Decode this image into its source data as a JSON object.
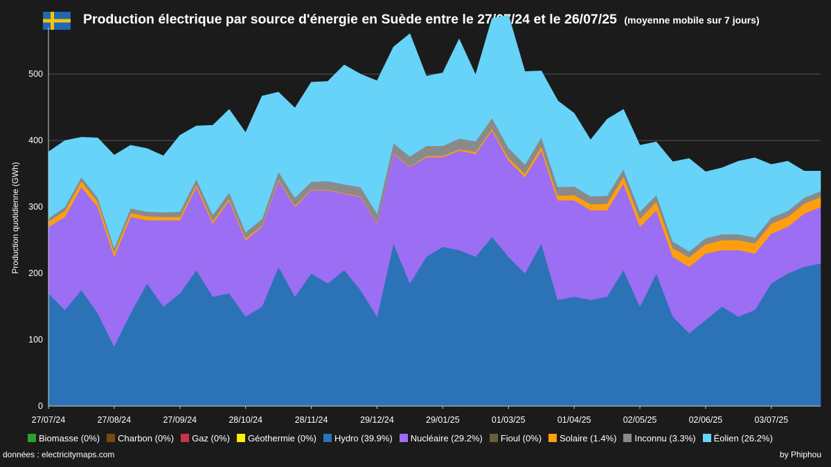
{
  "header": {
    "title": "Production électrique par source d'énergie en Suède entre le 27/07/24 et le 26/07/25",
    "subtitle": "(moyenne mobile sur 7 jours)"
  },
  "footer": {
    "source": "données : electricitymaps.com",
    "credit": "by Phiphou"
  },
  "chart_data": {
    "type": "area",
    "stacked": true,
    "ylabel": "Production quotidienne (GWh)",
    "ylim": [
      0,
      570
    ],
    "yticks": [
      0,
      100,
      200,
      300,
      400,
      500
    ],
    "grid": true,
    "legend_position": "bottom",
    "x_tick_labels": [
      "27/07/24",
      "27/08/24",
      "27/09/24",
      "28/10/24",
      "28/11/24",
      "29/12/24",
      "29/01/25",
      "01/03/25",
      "01/04/25",
      "02/05/25",
      "02/06/25",
      "03/07/25"
    ],
    "x": [
      "27/07/24",
      "03/08/24",
      "10/08/24",
      "17/08/24",
      "27/08/24",
      "03/09/24",
      "10/09/24",
      "17/09/24",
      "27/09/24",
      "04/10/24",
      "11/10/24",
      "18/10/24",
      "28/10/24",
      "04/11/24",
      "11/11/24",
      "18/11/24",
      "28/11/24",
      "05/12/24",
      "12/12/24",
      "19/12/24",
      "29/12/24",
      "05/01/25",
      "12/01/25",
      "19/01/25",
      "29/01/25",
      "05/02/25",
      "12/02/25",
      "19/02/25",
      "01/03/25",
      "08/03/25",
      "15/03/25",
      "22/03/25",
      "01/04/25",
      "08/04/25",
      "15/04/25",
      "22/04/25",
      "02/05/25",
      "09/05/25",
      "16/05/25",
      "23/05/25",
      "02/06/25",
      "09/06/25",
      "16/06/25",
      "23/06/25",
      "03/07/25",
      "10/07/25",
      "17/07/25",
      "26/07/25"
    ],
    "series": [
      {
        "name": "Biomasse (0%)",
        "color": "#2ca02c",
        "values": [
          0,
          0,
          0,
          0,
          0,
          0,
          0,
          0,
          0,
          0,
          0,
          0,
          0,
          0,
          0,
          0,
          0,
          0,
          0,
          0,
          0,
          0,
          0,
          0,
          0,
          0,
          0,
          0,
          0,
          0,
          0,
          0,
          0,
          0,
          0,
          0,
          0,
          0,
          0,
          0,
          0,
          0,
          0,
          0,
          0,
          0,
          0,
          0
        ]
      },
      {
        "name": "Charbon (0%)",
        "color": "#7a4a10",
        "values": [
          0,
          0,
          0,
          0,
          0,
          0,
          0,
          0,
          0,
          0,
          0,
          0,
          0,
          0,
          0,
          0,
          0,
          0,
          0,
          0,
          0,
          0,
          0,
          0,
          0,
          0,
          0,
          0,
          0,
          0,
          0,
          0,
          0,
          0,
          0,
          0,
          0,
          0,
          0,
          0,
          0,
          0,
          0,
          0,
          0,
          0,
          0,
          0
        ]
      },
      {
        "name": "Gaz (0%)",
        "color": "#c8334e",
        "values": [
          0,
          0,
          0,
          0,
          0,
          0,
          0,
          0,
          0,
          0,
          0,
          0,
          0,
          0,
          0,
          0,
          0,
          0,
          0,
          0,
          0,
          0,
          0,
          0,
          0,
          0,
          0,
          0,
          0,
          0,
          0,
          0,
          0,
          0,
          0,
          0,
          0,
          0,
          0,
          0,
          0,
          0,
          0,
          0,
          0,
          0,
          0,
          0
        ]
      },
      {
        "name": "Géothermie (0%)",
        "color": "#ffee00",
        "values": [
          0,
          0,
          0,
          0,
          0,
          0,
          0,
          0,
          0,
          0,
          0,
          0,
          0,
          0,
          0,
          0,
          0,
          0,
          0,
          0,
          0,
          0,
          0,
          0,
          0,
          0,
          0,
          0,
          0,
          0,
          0,
          0,
          0,
          0,
          0,
          0,
          0,
          0,
          0,
          0,
          0,
          0,
          0,
          0,
          0,
          0,
          0,
          0
        ]
      },
      {
        "name": "Hydro (39.9%)",
        "color": "#2b73b6",
        "values": [
          170,
          145,
          175,
          140,
          90,
          140,
          185,
          150,
          170,
          205,
          165,
          170,
          135,
          150,
          210,
          165,
          200,
          185,
          205,
          175,
          135,
          245,
          185,
          225,
          240,
          235,
          225,
          255,
          225,
          200,
          245,
          160,
          165,
          160,
          165,
          205,
          150,
          200,
          135,
          110,
          130,
          150,
          135,
          145,
          185,
          200,
          210,
          215
        ]
      },
      {
        "name": "Nucléaire (29.2%)",
        "color": "#9b6ef3",
        "values": [
          100,
          140,
          155,
          160,
          135,
          145,
          95,
          130,
          110,
          125,
          110,
          140,
          115,
          120,
          130,
          135,
          125,
          140,
          115,
          140,
          140,
          135,
          175,
          150,
          135,
          150,
          155,
          160,
          145,
          145,
          140,
          150,
          145,
          135,
          130,
          130,
          120,
          95,
          90,
          100,
          100,
          85,
          100,
          85,
          75,
          70,
          80,
          85
        ]
      },
      {
        "name": "Fioul (0%)",
        "color": "#6b5e3a",
        "values": [
          0,
          0,
          0,
          0,
          0,
          0,
          0,
          0,
          0,
          0,
          0,
          0,
          0,
          0,
          0,
          0,
          0,
          0,
          0,
          0,
          0,
          0,
          0,
          0,
          0,
          0,
          0,
          0,
          0,
          0,
          0,
          0,
          0,
          0,
          0,
          0,
          0,
          0,
          0,
          0,
          0,
          0,
          0,
          0,
          0,
          0,
          0,
          0
        ]
      },
      {
        "name": "Solaire (1.4%)",
        "color": "#ff9f0f",
        "values": [
          8,
          9,
          9,
          8,
          7,
          6,
          6,
          5,
          5,
          4,
          4,
          3,
          3,
          2,
          2,
          2,
          1,
          1,
          1,
          1,
          1,
          1,
          1,
          2,
          2,
          2,
          3,
          3,
          4,
          5,
          6,
          7,
          8,
          9,
          10,
          11,
          12,
          13,
          13,
          14,
          14,
          15,
          15,
          15,
          15,
          15,
          15,
          15
        ]
      },
      {
        "name": "Inconnu (3.3%)",
        "color": "#8a8a8a",
        "values": [
          5,
          6,
          6,
          6,
          6,
          7,
          7,
          7,
          8,
          8,
          9,
          9,
          9,
          10,
          11,
          12,
          12,
          13,
          13,
          14,
          14,
          15,
          15,
          15,
          15,
          16,
          16,
          16,
          15,
          14,
          14,
          13,
          13,
          12,
          12,
          11,
          11,
          10,
          10,
          9,
          9,
          9,
          9,
          9,
          9,
          9,
          9,
          9
        ]
      },
      {
        "name": "Éolien (26.2%)",
        "color": "#67d3f8",
        "values": [
          100,
          100,
          60,
          90,
          140,
          95,
          95,
          85,
          115,
          80,
          135,
          125,
          150,
          185,
          120,
          135,
          150,
          150,
          180,
          170,
          200,
          145,
          185,
          105,
          110,
          150,
          100,
          150,
          200,
          140,
          100,
          130,
          110,
          85,
          115,
          90,
          100,
          80,
          120,
          140,
          100,
          100,
          110,
          120,
          80,
          75,
          40,
          30
        ]
      }
    ]
  },
  "colors": {
    "background": "#1b1b1b",
    "grid": "#555555",
    "flag_blue": "#1f69b3",
    "flag_yellow": "#f7c300"
  }
}
